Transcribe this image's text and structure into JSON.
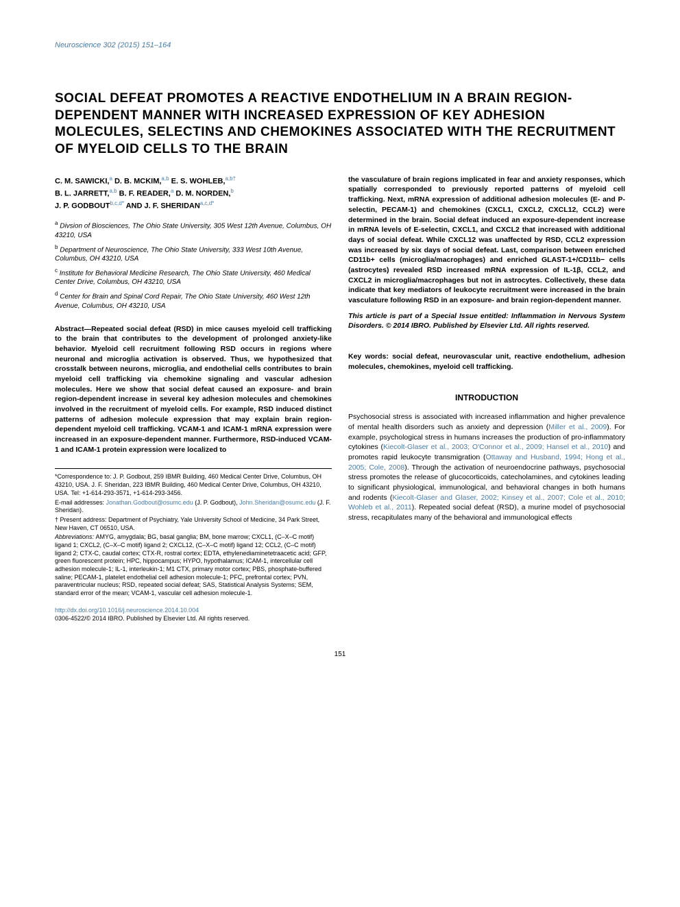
{
  "journal_header": "Neuroscience 302 (2015) 151–164",
  "title": "SOCIAL DEFEAT PROMOTES A REACTIVE ENDOTHELIUM IN A BRAIN REGION-DEPENDENT MANNER WITH INCREASED EXPRESSION OF KEY ADHESION MOLECULES, SELECTINS AND CHEMOKINES ASSOCIATED WITH THE RECRUITMENT OF MYELOID CELLS TO THE BRAIN",
  "authors": {
    "line1_name1": "C. M. SAWICKI,",
    "line1_sup1": "a",
    "line1_name2": " D. B. MCKIM,",
    "line1_sup2": "a,b",
    "line1_name3": " E. S. WOHLEB,",
    "line1_sup3": "a,b†",
    "line2_name1": "B. L. JARRETT,",
    "line2_sup1": "a,b",
    "line2_name2": " B. F. READER,",
    "line2_sup2": "a",
    "line2_name3": " D. M. NORDEN,",
    "line2_sup3": "b",
    "line3_name1": "J. P. GODBOUT",
    "line3_sup1": "b,c,d*",
    "line3_name2": " AND J. F. SHERIDAN",
    "line3_sup2": "a,c,d*"
  },
  "affiliations": {
    "a": "Divsion of Biosciences, The Ohio State University, 305 West 12th Avenue, Columbus, OH 43210, USA",
    "b": "Department of Neuroscience, The Ohio State University, 333 West 10th Avenue, Columbus, OH 43210, USA",
    "c": "Institute for Behavioral Medicine Research, The Ohio State University, 460 Medical Center Drive, Columbus, OH 43210, USA",
    "d": "Center for Brain and Spinal Cord Repair, The Ohio State University, 460 West 12th Avenue, Columbus, OH 43210, USA"
  },
  "abstract": {
    "label": "Abstract—",
    "left": "Repeated social defeat (RSD) in mice causes myeloid cell trafficking to the brain that contributes to the development of prolonged anxiety-like behavior. Myeloid cell recruitment following RSD occurs in regions where neuronal and microglia activation is observed. Thus, we hypothesized that crosstalk between neurons, microglia, and endothelial cells contributes to brain myeloid cell trafficking via chemokine signaling and vascular adhesion molecules. Here we show that social defeat caused an exposure- and brain region-dependent increase in several key adhesion molecules and chemokines involved in the recruitment of myeloid cells. For example, RSD induced distinct patterns of adhesion molecule expression that may explain brain region-dependent myeloid cell trafficking. VCAM-1 and ICAM-1 mRNA expression were increased in an exposure-dependent manner. Furthermore, RSD-induced VCAM-1 and ICAM-1 protein expression were localized to",
    "right": "the vasculature of brain regions implicated in fear and anxiety responses, which spatially corresponded to previously reported patterns of myeloid cell trafficking. Next, mRNA expression of additional adhesion molecules (E- and P-selectin, PECAM-1) and chemokines (CXCL1, CXCL2, CXCL12, CCL2) were determined in the brain. Social defeat induced an exposure-dependent increase in mRNA levels of E-selectin, CXCL1, and CXCL2 that increased with additional days of social defeat. While CXCL12 was unaffected by RSD, CCL2 expression was increased by six days of social defeat. Last, comparison between enriched CD11b+ cells (microglia/macrophages) and enriched GLAST-1+/CD11b− cells (astrocytes) revealed RSD increased mRNA expression of IL-1β, CCL2, and CXCL2 in microglia/macrophages but not in astrocytes. Collectively, these data indicate that key mediators of leukocyte recruitment were increased in the brain vasculature following RSD in an exposure- and brain region-dependent manner."
  },
  "special_issue": "This article is part of a Special Issue entitled: Inflammation in Nervous System Disorders. © 2014 IBRO. Published by Elsevier Ltd. All rights reserved.",
  "keywords": "Key words: social defeat, neurovascular unit, reactive endothelium, adhesion molecules, chemokines, myeloid cell trafficking.",
  "introduction_heading": "INTRODUCTION",
  "introduction_text": "Psychosocial stress is associated with increased inflammation and higher prevalence of mental health disorders such as anxiety and depression (",
  "intro_ref1": "Miller et al., 2009",
  "intro_text2": "). For example, psychological stress in humans increases the production of pro-inflammatory cytokines (",
  "intro_ref2": "Kiecolt-Glaser et al., 2003; O'Connor et al., 2009; Hansel et al., 2010",
  "intro_text3": ") and promotes rapid leukocyte transmigration (",
  "intro_ref3": "Ottaway and Husband, 1994; Hong et al., 2005; Cole, 2008",
  "intro_text4": "). Through the activation of neuroendocrine pathways, psychosocial stress promotes the release of glucocorticoids, catecholamines, and cytokines leading to significant physiological, immunological, and behavioral changes in both humans and rodents (",
  "intro_ref4": "Kiecolt-Glaser and Glaser, 2002; Kinsey et al., 2007; Cole et al., 2010; Wohleb et al., 2011",
  "intro_text5": "). Repeated social defeat (RSD), a murine model of psychosocial stress, recapitulates many of the behavioral and immunological effects",
  "footnotes": {
    "correspondence": "*Correspondence to: J. P. Godbout, 259 IBMR Building, 460 Medical Center Drive, Columbus, OH 43210, USA. J. F. Sheridan, 223 IBMR Building, 460 Medical Center Drive, Columbus, OH 43210, USA. Tel: +1-614-293-3571, +1-614-293-3456.",
    "email_label": "E-mail addresses: ",
    "email1": "Jonathan.Godbout@osumc.edu",
    "email1_name": " (J. P. Godbout), ",
    "email2": "John.Sheridan@osumc.edu",
    "email2_name": " (J. F. Sheridan).",
    "present_address": "† Present address: Department of Psychiatry, Yale University School of Medicine, 34 Park Street, New Haven, CT 06510, USA.",
    "abbreviations_label": "Abbreviations: ",
    "abbreviations": "AMYG, amygdala; BG, basal ganglia; BM, bone marrow; CXCL1, (C–X–C motif) ligand 1; CXCL2, (C–X–C motif) ligand 2; CXCL12, (C–X–C motif) ligand 12; CCL2, (C–C motif) ligand 2; CTX-C, caudal cortex; CTX-R, rostral cortex; EDTA, ethylenediaminetetraacetic acid; GFP, green fluorescent protein; HPC, hippocampus; HYPO, hypothalamus; ICAM-1, intercellular cell adhesion molecule-1; IL-1, interleukin-1; M1 CTX, primary motor cortex; PBS, phosphate-buffered saline; PECAM-1, platelet endothelial cell adhesion molecule-1; PFC, prefrontal cortex; PVN, paraventricular nucleus; RSD, repeated social defeat; SAS, Statistical Analysis Systems; SEM, standard error of the mean; VCAM-1, vascular cell adhesion molecule-1."
  },
  "doi": "http://dx.doi.org/10.1016/j.neuroscience.2014.10.004",
  "copyright": "0306-4522/© 2014 IBRO. Published by Elsevier Ltd. All rights reserved.",
  "page_number": "151"
}
